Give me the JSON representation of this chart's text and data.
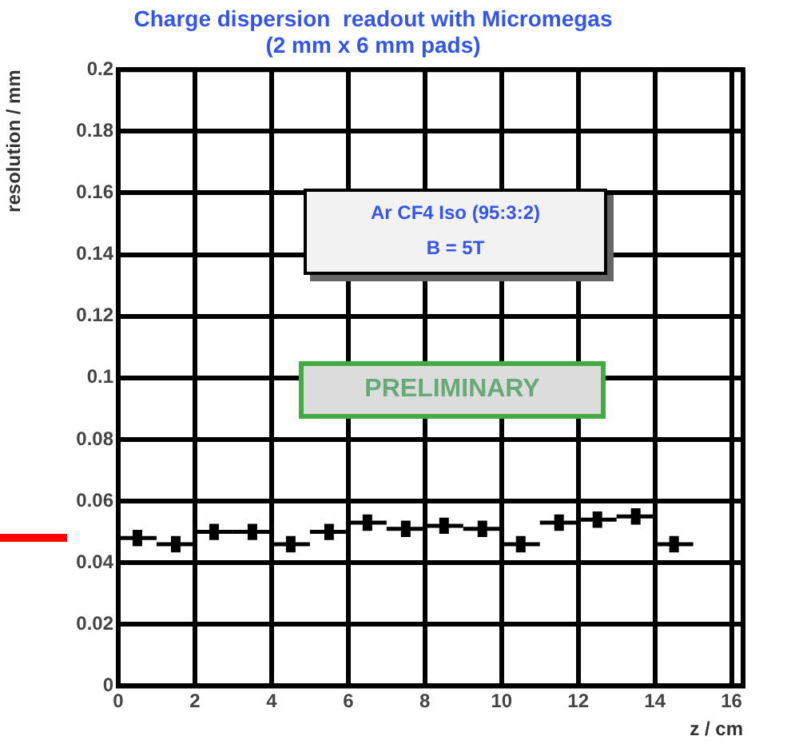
{
  "chart_data": {
    "type": "scatter",
    "title": "Charge dispersion  readout with Micromegas",
    "subtitle": "(2 mm x 6 mm pads)",
    "xlabel": "z / cm",
    "ylabel": "resolution / mm",
    "x": [
      0.5,
      1.5,
      2.5,
      3.5,
      4.5,
      5.5,
      6.5,
      7.5,
      8.5,
      9.5,
      10.5,
      11.5,
      12.5,
      13.5,
      14.5
    ],
    "series": [
      {
        "color": "#000000",
        "values": [
          0.048,
          0.046,
          0.05,
          0.05,
          0.046,
          0.05,
          0.053,
          0.051,
          0.052,
          0.051,
          0.046,
          0.053,
          0.054,
          0.055,
          0.046
        ],
        "errors": [
          0.002,
          0.002,
          0.002,
          0.002,
          0.002,
          0.002,
          0.002,
          0.002,
          0.002,
          0.002,
          0.002,
          0.002,
          0.002,
          0.002,
          0.002
        ],
        "xerrors": [
          0.5,
          0.5,
          0.5,
          0.5,
          0.5,
          0.5,
          0.5,
          0.5,
          0.5,
          0.5,
          0.5,
          0.5,
          0.5,
          0.5,
          0.5
        ]
      }
    ],
    "xlim": [
      0,
      16.3
    ],
    "xticks": [
      0,
      2,
      4,
      6,
      8,
      10,
      12,
      14,
      16
    ],
    "ylim": [
      0,
      0.2
    ],
    "yticks": [
      0,
      0.02,
      0.04,
      0.06,
      0.08,
      0.1,
      0.12,
      0.14,
      0.16,
      0.18,
      0.2
    ],
    "grid": true,
    "marker": "square",
    "annotations": [
      "Ar CF4 Iso (95:3:2)",
      "B = 5T",
      "PRELIMINARY"
    ]
  }
}
